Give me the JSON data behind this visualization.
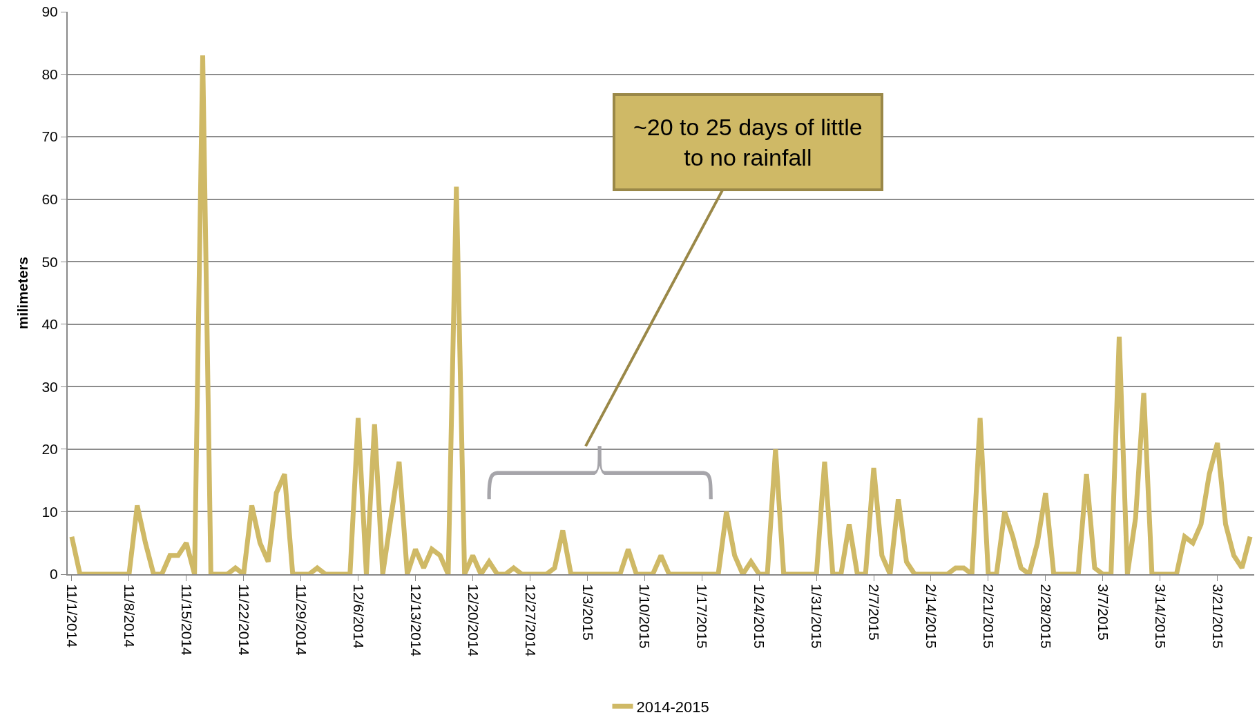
{
  "chart_data": {
    "type": "line",
    "ylabel": "milimeters",
    "categories": [
      "11/1/2014",
      null,
      null,
      null,
      null,
      null,
      null,
      "11/8/2014",
      null,
      null,
      null,
      null,
      null,
      null,
      "11/15/2014",
      null,
      null,
      null,
      null,
      null,
      null,
      "11/22/2014",
      null,
      null,
      null,
      null,
      null,
      null,
      "11/29/2014",
      null,
      null,
      null,
      null,
      null,
      null,
      "12/6/2014",
      null,
      null,
      null,
      null,
      null,
      null,
      "12/13/2014",
      null,
      null,
      null,
      null,
      null,
      null,
      "12/20/2014",
      null,
      null,
      null,
      null,
      null,
      null,
      "12/27/2014",
      null,
      null,
      null,
      null,
      null,
      null,
      "1/3/2015",
      null,
      null,
      null,
      null,
      null,
      null,
      "1/10/2015",
      null,
      null,
      null,
      null,
      null,
      null,
      "1/17/2015",
      null,
      null,
      null,
      null,
      null,
      null,
      "1/24/2015",
      null,
      null,
      null,
      null,
      null,
      null,
      "1/31/2015",
      null,
      null,
      null,
      null,
      null,
      null,
      "2/7/2015",
      null,
      null,
      null,
      null,
      null,
      null,
      "2/14/2015",
      null,
      null,
      null,
      null,
      null,
      null,
      "2/21/2015",
      null,
      null,
      null,
      null,
      null,
      null,
      "2/28/2015",
      null,
      null,
      null,
      null,
      null,
      null,
      "3/7/2015",
      null,
      null,
      null,
      null,
      null,
      null,
      "3/14/2015",
      null,
      null,
      null,
      null,
      null,
      null,
      "3/21/2015",
      null,
      null,
      null,
      null
    ],
    "series": [
      {
        "name": "2014-2015",
        "color": "#cfb966",
        "values": [
          6,
          0,
          0,
          0,
          0,
          0,
          0,
          0,
          11,
          5,
          0,
          0,
          3,
          3,
          5,
          0,
          83,
          0,
          0,
          0,
          1,
          0,
          11,
          5,
          2,
          13,
          16,
          0,
          0,
          0,
          1,
          0,
          0,
          0,
          0,
          25,
          0,
          24,
          0,
          9,
          18,
          0,
          4,
          1,
          4,
          3,
          0,
          62,
          0,
          3,
          0,
          2,
          0,
          0,
          1,
          0,
          0,
          0,
          0,
          1,
          7,
          0,
          0,
          0,
          0,
          0,
          0,
          0,
          4,
          0,
          0,
          0,
          3,
          0,
          0,
          0,
          0,
          0,
          0,
          0,
          10,
          3,
          0,
          2,
          0,
          0,
          20,
          0,
          0,
          0,
          0,
          0,
          18,
          0,
          0,
          8,
          0,
          0,
          17,
          3,
          0,
          12,
          2,
          0,
          0,
          0,
          0,
          0,
          1,
          1,
          0,
          25,
          0,
          0,
          10,
          6,
          1,
          0,
          5,
          13,
          0,
          0,
          0,
          0,
          16,
          1,
          0,
          0,
          38,
          0,
          9,
          29,
          0,
          0,
          0,
          0,
          6,
          5,
          8,
          16,
          21,
          8,
          3,
          1,
          6
        ]
      }
    ],
    "ylim": [
      0,
      90
    ],
    "yticks": [
      0,
      10,
      20,
      30,
      40,
      50,
      60,
      70,
      80,
      90
    ],
    "grid": "y",
    "legend": "bottom",
    "annotations": [
      "~20 to 25 days of little to no rainfall"
    ]
  }
}
